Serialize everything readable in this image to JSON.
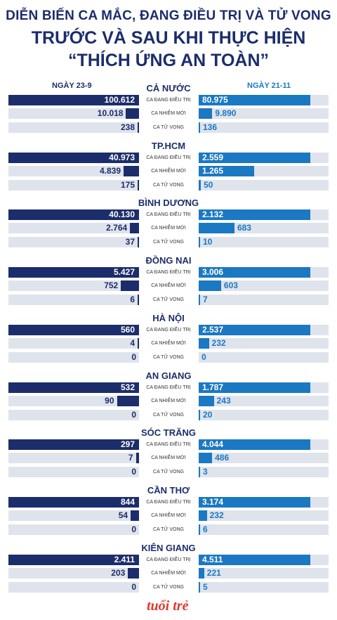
{
  "header": {
    "line1": "DIỄN BIẾN CA MẮC, ĐANG ĐIỀU TRỊ VÀ TỬ VONG",
    "line2": "TRƯỚC VÀ SAU KHI THỰC HIỆN",
    "line3": "“THÍCH ỨNG AN TOÀN”"
  },
  "dates": {
    "left": "NGÀY 23-9",
    "right": "NGÀY 21-11"
  },
  "colors": {
    "left_bar": "#1c2d6b",
    "right_bar": "#1b78c2",
    "track": "#dfe3ec"
  },
  "logo": "tuổi trẻ",
  "chart_data": {
    "type": "bar",
    "layout": "butterfly",
    "metrics": [
      "CA ĐANG ĐIỀU TRỊ",
      "CA NHIỄM MỚI",
      "CA TỬ VONG"
    ],
    "series_names": [
      "NGÀY 23-9",
      "NGÀY 21-11"
    ],
    "groups": [
      {
        "name": "CẢ NƯỚC",
        "rows": [
          {
            "left": 100612,
            "left_label": "100.612",
            "right": 80975,
            "right_label": "80.975"
          },
          {
            "left": 10018,
            "left_label": "10.018",
            "right": 9890,
            "right_label": "9.890"
          },
          {
            "left": 238,
            "left_label": "238",
            "right": 136,
            "right_label": "136"
          }
        ]
      },
      {
        "name": "TP.HCM",
        "rows": [
          {
            "left": 40973,
            "left_label": "40.973",
            "right": 2559,
            "right_label": "2.559"
          },
          {
            "left": 4839,
            "left_label": "4.839",
            "right": 1265,
            "right_label": "1.265"
          },
          {
            "left": 175,
            "left_label": "175",
            "right": 50,
            "right_label": "50"
          }
        ]
      },
      {
        "name": "BÌNH DƯƠNG",
        "rows": [
          {
            "left": 40130,
            "left_label": "40.130",
            "right": 2132,
            "right_label": "2.132"
          },
          {
            "left": 2764,
            "left_label": "2.764",
            "right": 683,
            "right_label": "683"
          },
          {
            "left": 37,
            "left_label": "37",
            "right": 10,
            "right_label": "10"
          }
        ]
      },
      {
        "name": "ĐỒNG NAI",
        "rows": [
          {
            "left": 5427,
            "left_label": "5.427",
            "right": 3006,
            "right_label": "3.006"
          },
          {
            "left": 752,
            "left_label": "752",
            "right": 603,
            "right_label": "603"
          },
          {
            "left": 6,
            "left_label": "6",
            "right": 7,
            "right_label": "7"
          }
        ]
      },
      {
        "name": "HÀ NỘI",
        "rows": [
          {
            "left": 560,
            "left_label": "560",
            "right": 2537,
            "right_label": "2.537"
          },
          {
            "left": 4,
            "left_label": "4",
            "right": 232,
            "right_label": "232"
          },
          {
            "left": 0,
            "left_label": "0",
            "right": 0,
            "right_label": "0"
          }
        ]
      },
      {
        "name": "AN GIANG",
        "rows": [
          {
            "left": 532,
            "left_label": "532",
            "right": 1787,
            "right_label": "1.787"
          },
          {
            "left": 90,
            "left_label": "90",
            "right": 243,
            "right_label": "243"
          },
          {
            "left": 0,
            "left_label": "0",
            "right": 20,
            "right_label": "20"
          }
        ]
      },
      {
        "name": "SÓC TRĂNG",
        "rows": [
          {
            "left": 297,
            "left_label": "297",
            "right": 4044,
            "right_label": "4.044"
          },
          {
            "left": 7,
            "left_label": "7",
            "right": 486,
            "right_label": "486"
          },
          {
            "left": 0,
            "left_label": "0",
            "right": 3,
            "right_label": "3"
          }
        ]
      },
      {
        "name": "CẦN THƠ",
        "rows": [
          {
            "left": 844,
            "left_label": "844",
            "right": 3174,
            "right_label": "3.174"
          },
          {
            "left": 54,
            "left_label": "54",
            "right": 232,
            "right_label": "232"
          },
          {
            "left": 0,
            "left_label": "0",
            "right": 6,
            "right_label": "6"
          }
        ]
      },
      {
        "name": "KIÊN GIANG",
        "rows": [
          {
            "left": 2411,
            "left_label": "2.411",
            "right": 4511,
            "right_label": "4.511"
          },
          {
            "left": 203,
            "left_label": "203",
            "right": 221,
            "right_label": "221"
          },
          {
            "left": 0,
            "left_label": "0",
            "right": 5,
            "right_label": "5"
          }
        ]
      }
    ]
  }
}
